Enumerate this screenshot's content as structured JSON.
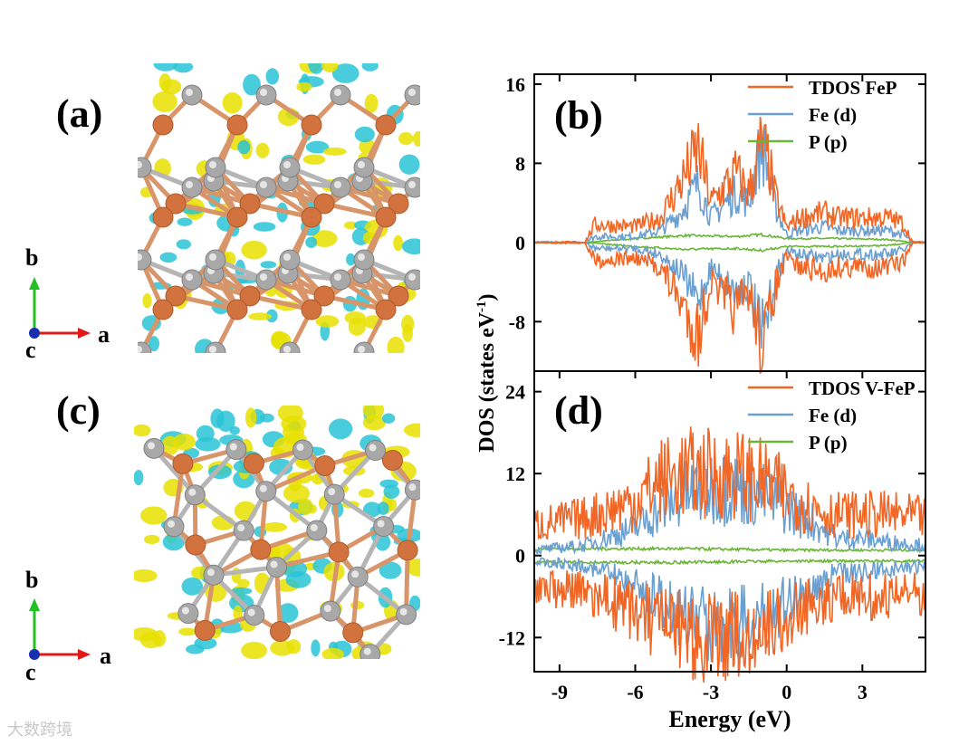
{
  "panels": {
    "a": {
      "label": "(a)"
    },
    "b": {
      "label": "(b)"
    },
    "c": {
      "label": "(c)"
    },
    "d": {
      "label": "(d)"
    }
  },
  "axes_indicator": {
    "b": "b",
    "a": "a",
    "c": "c"
  },
  "watermark": "大数跨境",
  "colors": {
    "tdos": "#f26522",
    "fe_d": "#6a9fd1",
    "p_p": "#6ab536",
    "yellow": "#e8e000",
    "cyan": "#29c4d6",
    "fe_atom": "#d2733f",
    "p_atom": "#a8a8a8"
  },
  "chart_data": [
    {
      "type": "line",
      "panel": "(b)",
      "title": "",
      "xlabel": "Energy (eV)",
      "ylabel": "DOS (states eV-1)",
      "xlim": [
        -10,
        5.5
      ],
      "ylim": [
        -13,
        17
      ],
      "yticks": [
        -8,
        0,
        8,
        16
      ],
      "legend": [
        "TDOS FeP",
        "Fe (d)",
        "P (p)"
      ],
      "legend_position": "top-right",
      "series": [
        {
          "name": "TDOS FeP",
          "x": [
            -10,
            -8,
            -7.6,
            -6,
            -5,
            -4.2,
            -3.5,
            -3,
            -2,
            -1.5,
            -1,
            -0.7,
            -0.5,
            0,
            0.5,
            1.5,
            2,
            3,
            4,
            4.6,
            5,
            5.5
          ],
          "up": [
            0,
            0,
            1.8,
            1.6,
            2.5,
            6,
            9.5,
            4,
            7,
            5,
            10,
            8,
            5,
            1.5,
            2.5,
            3,
            2.5,
            2.5,
            2.5,
            2,
            0,
            0
          ]
        },
        {
          "name": "Fe (d)",
          "x": [
            -10,
            -8,
            -7.6,
            -6,
            -5,
            -4.2,
            -3.5,
            -3,
            -2,
            -1.5,
            -1,
            -0.7,
            -0.5,
            0,
            0.5,
            1.5,
            2,
            3,
            4,
            4.6,
            5,
            5.5
          ],
          "up": [
            0,
            0,
            0.6,
            0.6,
            1.2,
            3,
            6,
            2.5,
            5,
            4,
            10,
            7,
            4,
            0.8,
            1.2,
            1.6,
            1.2,
            1.2,
            1.2,
            0.8,
            0,
            0
          ]
        },
        {
          "name": "P (p)",
          "x": [
            -10,
            -8,
            -6,
            -4,
            -2,
            -1,
            0,
            2,
            4,
            5,
            5.5
          ],
          "up": [
            0,
            0,
            0.4,
            0.7,
            0.6,
            0.8,
            0.4,
            0.4,
            0.3,
            0,
            0
          ]
        }
      ]
    },
    {
      "type": "line",
      "panel": "(d)",
      "title": "",
      "xlabel": "Energy (eV)",
      "ylabel": "DOS (states eV-1)",
      "xlim": [
        -10,
        5.5
      ],
      "ylim": [
        -17,
        27
      ],
      "yticks": [
        -12,
        0,
        12,
        24
      ],
      "xticks": [
        -9,
        -6,
        -3,
        0,
        3
      ],
      "legend": [
        "TDOS V-FeP",
        "Fe (d)",
        "P (p)"
      ],
      "legend_position": "top-right",
      "series": [
        {
          "name": "TDOS V-FeP",
          "x": [
            -10,
            -8,
            -6,
            -5,
            -4,
            -3,
            -2,
            -1,
            0,
            1,
            2,
            3,
            4,
            5.5
          ],
          "up": [
            4.5,
            5.5,
            8,
            11,
            12,
            12,
            12,
            11,
            9,
            7,
            6,
            6,
            6,
            5.5
          ]
        },
        {
          "name": "Fe (d)",
          "x": [
            -10,
            -8,
            -6,
            -5,
            -4,
            -3,
            -2,
            -1,
            0,
            1,
            2,
            3,
            4,
            5.5
          ],
          "up": [
            0.8,
            1.5,
            4,
            7,
            9,
            10,
            10,
            9,
            7,
            5,
            2.5,
            2.5,
            2,
            1.5
          ]
        },
        {
          "name": "P (p)",
          "x": [
            -10,
            -8,
            -6,
            -4,
            -2,
            0,
            2,
            4,
            5.5
          ],
          "up": [
            1,
            1,
            1,
            1,
            0.9,
            0.8,
            0.8,
            0.8,
            0.8
          ]
        }
      ]
    }
  ]
}
